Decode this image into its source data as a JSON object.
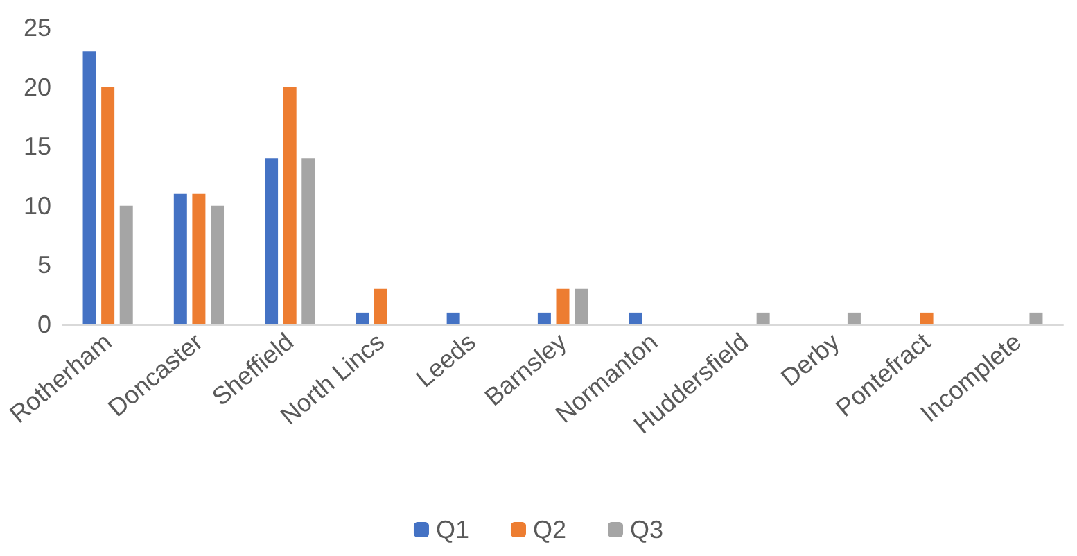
{
  "chart_data": {
    "type": "bar",
    "categories": [
      "Rotherham",
      "Doncaster",
      "Sheffield",
      "North Lincs",
      "Leeds",
      "Barnsley",
      "Normanton",
      "Huddersfield",
      "Derby",
      "Pontefract",
      "Incomplete"
    ],
    "series": [
      {
        "name": "Q1",
        "color": "#4472c4",
        "values": [
          23,
          11,
          14,
          1,
          1,
          1,
          1,
          0,
          0,
          0,
          0
        ]
      },
      {
        "name": "Q2",
        "color": "#ed7d31",
        "values": [
          20,
          11,
          20,
          3,
          0,
          3,
          0,
          0,
          0,
          1,
          0
        ]
      },
      {
        "name": "Q3",
        "color": "#a5a5a5",
        "values": [
          10,
          10,
          14,
          0,
          0,
          3,
          0,
          1,
          1,
          0,
          1
        ]
      }
    ],
    "ylim": [
      0,
      25
    ],
    "yticks": [
      0,
      5,
      10,
      15,
      20,
      25
    ],
    "grid": false,
    "legend": "bottom"
  }
}
